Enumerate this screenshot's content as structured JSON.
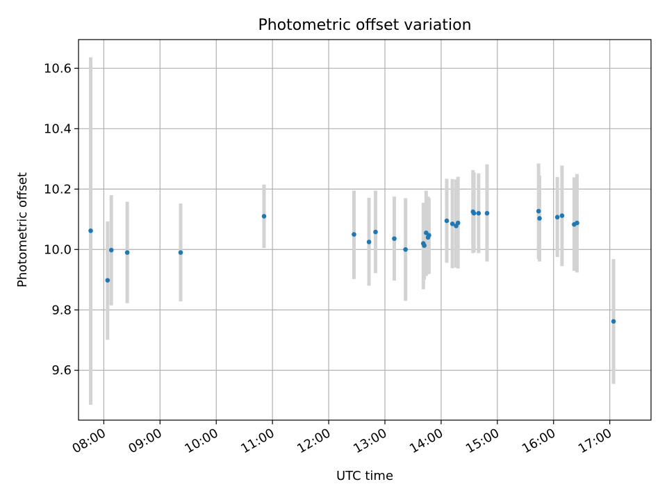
{
  "chart_data": {
    "type": "scatter",
    "title": "Photometric offset variation",
    "xlabel": "UTC time",
    "ylabel": "Photometric offset",
    "x_ticks": [
      "08:00",
      "09:00",
      "10:00",
      "11:00",
      "12:00",
      "13:00",
      "14:00",
      "15:00",
      "16:00",
      "17:00"
    ],
    "y_ticks": [
      "9.6",
      "9.8",
      "10.0",
      "10.2",
      "10.4",
      "10.6"
    ],
    "xlim": [
      "07:33",
      "17:44"
    ],
    "ylim": [
      9.435,
      10.695
    ],
    "grid": true,
    "colors": {
      "point": "#1f77b4",
      "errorbar": "#d3d3d3",
      "grid": "#b0b0b0"
    },
    "points": [
      {
        "t": "07:46",
        "y": 10.062,
        "lo": 9.486,
        "hi": 10.636
      },
      {
        "t": "08:04",
        "y": 9.898,
        "lo": 9.701,
        "hi": 10.093
      },
      {
        "t": "08:08",
        "y": 9.998,
        "lo": 9.815,
        "hi": 10.18
      },
      {
        "t": "08:25",
        "y": 9.99,
        "lo": 9.822,
        "hi": 10.158
      },
      {
        "t": "09:22",
        "y": 9.99,
        "lo": 9.828,
        "hi": 10.152
      },
      {
        "t": "10:51",
        "y": 10.11,
        "lo": 10.005,
        "hi": 10.215
      },
      {
        "t": "12:27",
        "y": 10.05,
        "lo": 9.902,
        "hi": 10.195
      },
      {
        "t": "12:43",
        "y": 10.025,
        "lo": 9.88,
        "hi": 10.171
      },
      {
        "t": "12:50",
        "y": 10.058,
        "lo": 9.922,
        "hi": 10.195
      },
      {
        "t": "13:10",
        "y": 10.036,
        "lo": 9.897,
        "hi": 10.175
      },
      {
        "t": "13:22",
        "y": 10.0,
        "lo": 9.83,
        "hi": 10.17
      },
      {
        "t": "13:41",
        "y": 10.02,
        "lo": 9.868,
        "hi": 10.155
      },
      {
        "t": "13:42",
        "y": 10.013,
        "lo": 9.9,
        "hi": 10.15
      },
      {
        "t": "13:44",
        "y": 10.055,
        "lo": 9.912,
        "hi": 10.195
      },
      {
        "t": "13:46",
        "y": 10.04,
        "lo": 9.918,
        "hi": 10.175
      },
      {
        "t": "13:47",
        "y": 10.047,
        "lo": 9.92,
        "hi": 10.17
      },
      {
        "t": "14:06",
        "y": 10.095,
        "lo": 9.956,
        "hi": 10.234
      },
      {
        "t": "14:12",
        "y": 10.085,
        "lo": 9.938,
        "hi": 10.233
      },
      {
        "t": "14:16",
        "y": 10.078,
        "lo": 9.94,
        "hi": 10.232
      },
      {
        "t": "14:18",
        "y": 10.088,
        "lo": 9.937,
        "hi": 10.241
      },
      {
        "t": "14:34",
        "y": 10.125,
        "lo": 9.988,
        "hi": 10.263
      },
      {
        "t": "14:35",
        "y": 10.12,
        "lo": 9.99,
        "hi": 10.255
      },
      {
        "t": "14:40",
        "y": 10.12,
        "lo": 9.988,
        "hi": 10.252
      },
      {
        "t": "14:49",
        "y": 10.12,
        "lo": 9.96,
        "hi": 10.282
      },
      {
        "t": "15:44",
        "y": 10.127,
        "lo": 9.968,
        "hi": 10.285
      },
      {
        "t": "15:45",
        "y": 10.103,
        "lo": 9.96,
        "hi": 10.245
      },
      {
        "t": "16:04",
        "y": 10.107,
        "lo": 9.975,
        "hi": 10.24
      },
      {
        "t": "16:09",
        "y": 10.112,
        "lo": 9.945,
        "hi": 10.278
      },
      {
        "t": "16:22",
        "y": 10.083,
        "lo": 9.929,
        "hi": 10.239
      },
      {
        "t": "16:25",
        "y": 10.088,
        "lo": 9.924,
        "hi": 10.25
      },
      {
        "t": "17:04",
        "y": 9.762,
        "lo": 9.555,
        "hi": 9.968
      }
    ]
  }
}
